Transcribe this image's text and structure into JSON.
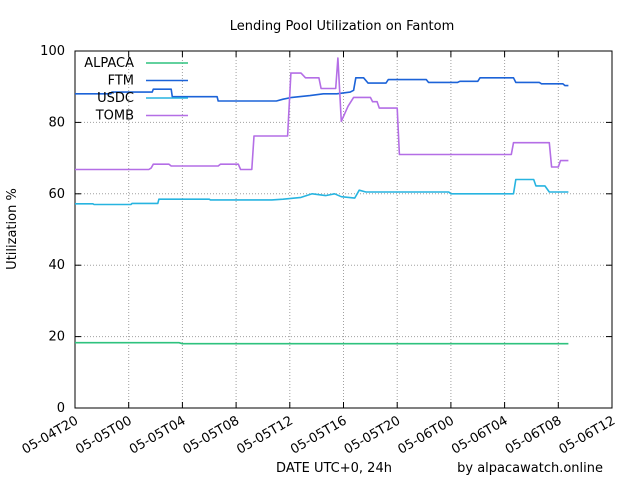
{
  "chart_data": {
    "type": "line",
    "title": "Lending Pool Utilization on Fantom",
    "xlabel": "DATE UTC+0, 24h",
    "ylabel": "Utilization %",
    "credit": "by alpacawatch.online",
    "xlim": [
      "2022-05-04T20:00",
      "2022-05-06T12:00"
    ],
    "ylim": [
      0,
      100
    ],
    "grid": true,
    "legend_position": "top-left",
    "x_ticks": [
      "05-04T20",
      "05-05T00",
      "05-05T04",
      "05-05T08",
      "05-05T12",
      "05-05T16",
      "05-05T20",
      "05-06T00",
      "05-06T04",
      "05-06T08",
      "05-06T12"
    ],
    "y_ticks": [
      "0",
      "20",
      "40",
      "60",
      "80",
      "100"
    ],
    "series": [
      {
        "name": "ALPACA",
        "color": "#2ec27e",
        "points": [
          [
            "2022-05-04T20:00",
            18.3
          ],
          [
            "2022-05-05T03:45",
            18.3
          ],
          [
            "2022-05-05T04:00",
            18.0
          ],
          [
            "2022-05-06T08:45",
            18.0
          ]
        ]
      },
      {
        "name": "FTM",
        "color": "#1c63d8",
        "points": [
          [
            "2022-05-04T20:00",
            88.0
          ],
          [
            "2022-05-04T22:40",
            88.0
          ],
          [
            "2022-05-04T22:45",
            88.5
          ],
          [
            "2022-05-05T01:45",
            88.5
          ],
          [
            "2022-05-05T01:50",
            89.3
          ],
          [
            "2022-05-05T03:10",
            89.3
          ],
          [
            "2022-05-05T03:15",
            87.2
          ],
          [
            "2022-05-05T06:35",
            87.2
          ],
          [
            "2022-05-05T06:40",
            86.0
          ],
          [
            "2022-05-05T11:00",
            86.0
          ],
          [
            "2022-05-05T11:30",
            86.5
          ],
          [
            "2022-05-05T12:10",
            87.0
          ],
          [
            "2022-05-05T13:30",
            87.5
          ],
          [
            "2022-05-05T14:30",
            88.0
          ],
          [
            "2022-05-05T15:30",
            88.0
          ],
          [
            "2022-05-05T16:30",
            88.5
          ],
          [
            "2022-05-05T16:45",
            89.0
          ],
          [
            "2022-05-05T16:55",
            92.5
          ],
          [
            "2022-05-05T17:30",
            92.5
          ],
          [
            "2022-05-05T17:50",
            91.0
          ],
          [
            "2022-05-05T19:10",
            91.0
          ],
          [
            "2022-05-05T19:20",
            92.0
          ],
          [
            "2022-05-05T22:10",
            92.0
          ],
          [
            "2022-05-05T22:20",
            91.2
          ],
          [
            "2022-05-06T00:30",
            91.2
          ],
          [
            "2022-05-06T00:40",
            91.5
          ],
          [
            "2022-05-06T02:00",
            91.5
          ],
          [
            "2022-05-06T02:10",
            92.5
          ],
          [
            "2022-05-06T04:40",
            92.5
          ],
          [
            "2022-05-06T04:50",
            91.2
          ],
          [
            "2022-05-06T06:35",
            91.2
          ],
          [
            "2022-05-06T06:45",
            90.8
          ],
          [
            "2022-05-06T08:20",
            90.8
          ],
          [
            "2022-05-06T08:30",
            90.3
          ],
          [
            "2022-05-06T08:45",
            90.3
          ]
        ]
      },
      {
        "name": "USDC",
        "color": "#27b4e0",
        "points": [
          [
            "2022-05-04T20:00",
            57.2
          ],
          [
            "2022-05-04T21:20",
            57.2
          ],
          [
            "2022-05-04T21:25",
            57.0
          ],
          [
            "2022-05-05T00:10",
            57.0
          ],
          [
            "2022-05-05T00:15",
            57.3
          ],
          [
            "2022-05-05T02:10",
            57.3
          ],
          [
            "2022-05-05T02:15",
            58.5
          ],
          [
            "2022-05-05T06:00",
            58.5
          ],
          [
            "2022-05-05T06:05",
            58.3
          ],
          [
            "2022-05-05T10:40",
            58.3
          ],
          [
            "2022-05-05T11:30",
            58.5
          ],
          [
            "2022-05-05T12:50",
            59.0
          ],
          [
            "2022-05-05T13:40",
            60.0
          ],
          [
            "2022-05-05T14:40",
            59.5
          ],
          [
            "2022-05-05T15:20",
            60.0
          ],
          [
            "2022-05-05T15:50",
            59.2
          ],
          [
            "2022-05-05T16:50",
            58.8
          ],
          [
            "2022-05-05T17:10",
            61.0
          ],
          [
            "2022-05-05T17:40",
            60.5
          ],
          [
            "2022-05-05T23:50",
            60.5
          ],
          [
            "2022-05-06T00:00",
            60.0
          ],
          [
            "2022-05-06T04:40",
            60.0
          ],
          [
            "2022-05-06T04:50",
            64.0
          ],
          [
            "2022-05-06T06:10",
            64.0
          ],
          [
            "2022-05-06T06:20",
            62.2
          ],
          [
            "2022-05-06T07:00",
            62.2
          ],
          [
            "2022-05-06T07:20",
            60.5
          ],
          [
            "2022-05-06T08:45",
            60.5
          ]
        ]
      },
      {
        "name": "TOMB",
        "color": "#b46ee6",
        "points": [
          [
            "2022-05-04T20:00",
            66.8
          ],
          [
            "2022-05-05T01:30",
            66.8
          ],
          [
            "2022-05-05T01:40",
            67.2
          ],
          [
            "2022-05-05T01:50",
            68.3
          ],
          [
            "2022-05-05T03:00",
            68.3
          ],
          [
            "2022-05-05T03:10",
            67.8
          ],
          [
            "2022-05-05T06:40",
            67.8
          ],
          [
            "2022-05-05T06:50",
            68.3
          ],
          [
            "2022-05-05T08:10",
            68.3
          ],
          [
            "2022-05-05T08:20",
            66.8
          ],
          [
            "2022-05-05T09:10",
            66.8
          ],
          [
            "2022-05-05T09:20",
            76.2
          ],
          [
            "2022-05-05T11:50",
            76.2
          ],
          [
            "2022-05-05T12:05",
            93.8
          ],
          [
            "2022-05-05T12:50",
            93.8
          ],
          [
            "2022-05-05T13:10",
            92.5
          ],
          [
            "2022-05-05T14:10",
            92.5
          ],
          [
            "2022-05-05T14:20",
            89.5
          ],
          [
            "2022-05-05T15:25",
            89.5
          ],
          [
            "2022-05-05T15:35",
            98.0
          ],
          [
            "2022-05-05T15:50",
            80.3
          ],
          [
            "2022-05-05T16:20",
            84.5
          ],
          [
            "2022-05-05T16:45",
            87.0
          ],
          [
            "2022-05-05T18:00",
            87.0
          ],
          [
            "2022-05-05T18:10",
            85.8
          ],
          [
            "2022-05-05T18:30",
            85.8
          ],
          [
            "2022-05-05T18:40",
            84.0
          ],
          [
            "2022-05-05T20:00",
            84.0
          ],
          [
            "2022-05-05T20:10",
            71.0
          ],
          [
            "2022-05-06T04:30",
            71.0
          ],
          [
            "2022-05-06T04:40",
            74.3
          ],
          [
            "2022-05-06T07:20",
            74.3
          ],
          [
            "2022-05-06T07:30",
            67.5
          ],
          [
            "2022-05-06T08:00",
            67.5
          ],
          [
            "2022-05-06T08:10",
            69.3
          ],
          [
            "2022-05-06T08:45",
            69.3
          ]
        ]
      }
    ]
  }
}
